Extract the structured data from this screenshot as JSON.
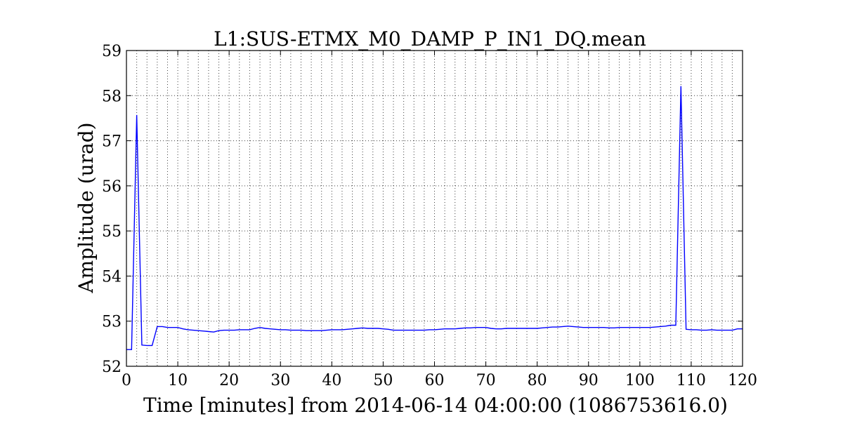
{
  "chart_data": {
    "type": "line",
    "title": "L1:SUS-ETMX_M0_DAMP_P_IN1_DQ.mean",
    "xlabel": "Time [minutes] from 2014-06-14 04:00:00 (1086753616.0)",
    "ylabel": "Amplitude (urad)",
    "xlim": [
      0,
      120
    ],
    "ylim": [
      52,
      59
    ],
    "xticks": [
      0,
      10,
      20,
      30,
      40,
      50,
      60,
      70,
      80,
      90,
      100,
      110,
      120
    ],
    "xtick_labels": [
      "0",
      "10",
      "20",
      "30",
      "40",
      "50",
      "60",
      "70",
      "80",
      "90",
      "100",
      "110",
      "120"
    ],
    "yticks": [
      52,
      53,
      54,
      55,
      56,
      57,
      58,
      59
    ],
    "ytick_labels": [
      "52",
      "53",
      "54",
      "55",
      "56",
      "57",
      "58",
      "59"
    ],
    "x_minor_grid_step": 2,
    "grid": true,
    "series": [
      {
        "color": "#0000ff",
        "x": [
          0,
          1,
          2,
          3,
          4,
          5,
          6,
          7,
          8,
          9,
          10,
          11,
          12,
          13,
          14,
          15,
          16,
          17,
          18,
          19,
          20,
          21,
          22,
          23,
          24,
          25,
          26,
          27,
          28,
          29,
          30,
          31,
          32,
          33,
          34,
          35,
          36,
          37,
          38,
          39,
          40,
          41,
          42,
          43,
          44,
          45,
          46,
          47,
          48,
          49,
          50,
          51,
          52,
          53,
          54,
          55,
          56,
          57,
          58,
          59,
          60,
          61,
          62,
          63,
          64,
          65,
          66,
          67,
          68,
          69,
          70,
          71,
          72,
          73,
          74,
          75,
          76,
          77,
          78,
          79,
          80,
          81,
          82,
          83,
          84,
          85,
          86,
          87,
          88,
          89,
          90,
          91,
          92,
          93,
          94,
          95,
          96,
          97,
          98,
          99,
          100,
          101,
          102,
          103,
          104,
          105,
          106,
          107,
          108,
          109,
          110,
          111,
          112,
          113,
          114,
          115,
          116,
          117,
          118,
          119,
          120
        ],
        "values": [
          52.37,
          52.37,
          57.57,
          52.47,
          52.46,
          52.46,
          52.88,
          52.88,
          52.86,
          52.86,
          52.86,
          52.83,
          52.81,
          52.8,
          52.79,
          52.78,
          52.77,
          52.76,
          52.79,
          52.8,
          52.8,
          52.8,
          52.81,
          52.81,
          52.81,
          52.84,
          52.86,
          52.84,
          52.83,
          52.82,
          52.81,
          52.81,
          52.8,
          52.8,
          52.8,
          52.79,
          52.79,
          52.79,
          52.79,
          52.8,
          52.81,
          52.81,
          52.81,
          52.82,
          52.83,
          52.84,
          52.85,
          52.84,
          52.84,
          52.84,
          52.83,
          52.82,
          52.8,
          52.8,
          52.8,
          52.8,
          52.8,
          52.8,
          52.8,
          52.81,
          52.81,
          52.82,
          52.83,
          52.83,
          52.83,
          52.84,
          52.85,
          52.85,
          52.86,
          52.86,
          52.86,
          52.84,
          52.83,
          52.83,
          52.84,
          52.84,
          52.84,
          52.84,
          52.84,
          52.84,
          52.84,
          52.85,
          52.86,
          52.87,
          52.87,
          52.88,
          52.89,
          52.88,
          52.87,
          52.86,
          52.86,
          52.86,
          52.86,
          52.86,
          52.85,
          52.85,
          52.86,
          52.86,
          52.86,
          52.86,
          52.86,
          52.86,
          52.86,
          52.87,
          52.88,
          52.89,
          52.91,
          52.91,
          58.21,
          52.82,
          52.81,
          52.81,
          52.8,
          52.8,
          52.81,
          52.8,
          52.8,
          52.8,
          52.8,
          52.83,
          52.83
        ]
      }
    ]
  }
}
